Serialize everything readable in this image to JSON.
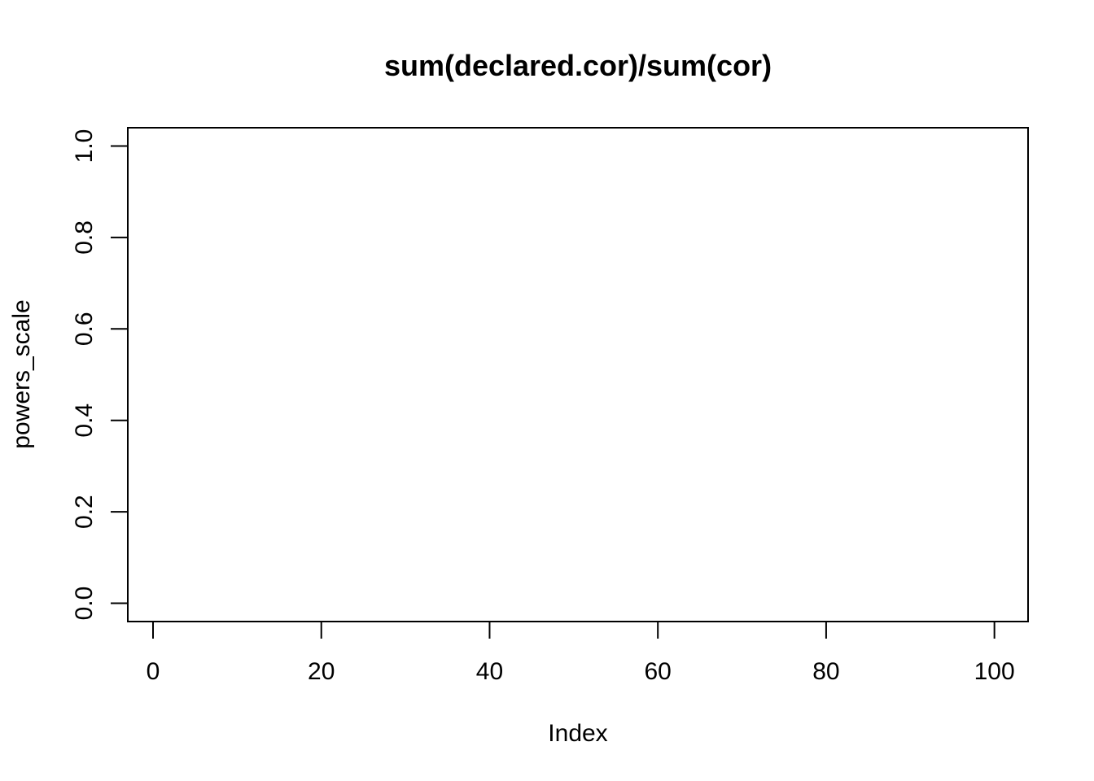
{
  "chart_data": {
    "type": "scatter",
    "title": "sum(declared.cor)/sum(cor)",
    "xlabel": "Index",
    "ylabel": "powers_scale",
    "xlim": [
      -3,
      104
    ],
    "ylim": [
      -0.04,
      1.04
    ],
    "x_ticks": [
      0,
      20,
      40,
      60,
      80,
      100
    ],
    "x_tick_labels": [
      "0",
      "20",
      "40",
      "60",
      "80",
      "100"
    ],
    "y_ticks": [
      0.0,
      0.2,
      0.4,
      0.6,
      0.8,
      1.0
    ],
    "y_tick_labels": [
      "0.0",
      "0.2",
      "0.4",
      "0.6",
      "0.8",
      "1.0"
    ],
    "series": [
      {
        "x": [],
        "y": []
      }
    ],
    "grid": false,
    "legend": "none",
    "colors": {
      "axis": "#000000",
      "background": "#ffffff"
    }
  }
}
